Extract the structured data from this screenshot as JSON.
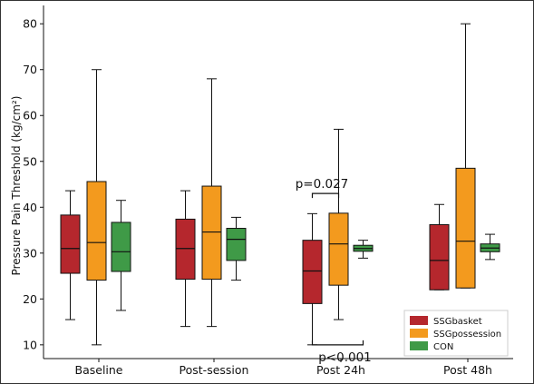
{
  "chart_data": {
    "type": "box",
    "title": "",
    "xlabel": "",
    "ylabel": "Pressure Pain Threshold (kg/cm²)",
    "ylim": [
      7,
      84
    ],
    "yticks": [
      10,
      20,
      30,
      40,
      50,
      60,
      70,
      80
    ],
    "categories": [
      "Baseline",
      "Post-session",
      "Post 24h",
      "Post 48h"
    ],
    "series": [
      {
        "name": "SSGbasket",
        "color": "#b5272d",
        "boxes": [
          {
            "min": 15.5,
            "q1": 25.6,
            "median": 31.0,
            "q3": 38.3,
            "max": 43.6
          },
          {
            "min": 14.0,
            "q1": 24.3,
            "median": 31.0,
            "q3": 37.4,
            "max": 43.6
          },
          {
            "min": 10.0,
            "q1": 19.0,
            "median": 26.1,
            "q3": 32.8,
            "max": 38.6
          },
          {
            "min": 22.0,
            "q1": 22.0,
            "median": 28.4,
            "q3": 36.2,
            "max": 40.6
          }
        ]
      },
      {
        "name": "SSGpossession",
        "color": "#f39a1e",
        "boxes": [
          {
            "min": 10.0,
            "q1": 24.1,
            "median": 32.3,
            "q3": 45.6,
            "max": 70.0
          },
          {
            "min": 14.0,
            "q1": 24.3,
            "median": 34.6,
            "q3": 44.6,
            "max": 68.0
          },
          {
            "min": 15.5,
            "q1": 23.0,
            "median": 32.0,
            "q3": 38.7,
            "max": 57.0
          },
          {
            "min": 22.4,
            "q1": 22.4,
            "median": 32.6,
            "q3": 48.5,
            "max": 80.0
          }
        ]
      },
      {
        "name": "CON",
        "color": "#3f9a47",
        "boxes": [
          {
            "min": 17.5,
            "q1": 26.0,
            "median": 30.3,
            "q3": 36.7,
            "max": 41.5
          },
          {
            "min": 24.1,
            "q1": 28.4,
            "median": 33.0,
            "q3": 35.4,
            "max": 37.8
          },
          {
            "min": 28.9,
            "q1": 30.4,
            "median": 31.0,
            "q3": 31.7,
            "max": 32.8
          },
          {
            "min": 28.6,
            "q1": 30.3,
            "median": 31.1,
            "q3": 32.0,
            "max": 34.1
          }
        ]
      }
    ],
    "annotations": [
      {
        "text": "p=0.027",
        "category": "Post 24h",
        "value": 43.0,
        "between": [
          "SSGbasket",
          "SSGpossession"
        ]
      },
      {
        "text": "p<0.001",
        "category": "Post 24h",
        "value": 10.0,
        "between": [
          "SSGbasket",
          "CON"
        ]
      }
    ],
    "legend": {
      "placement": "bottom-right"
    },
    "grid": false
  }
}
